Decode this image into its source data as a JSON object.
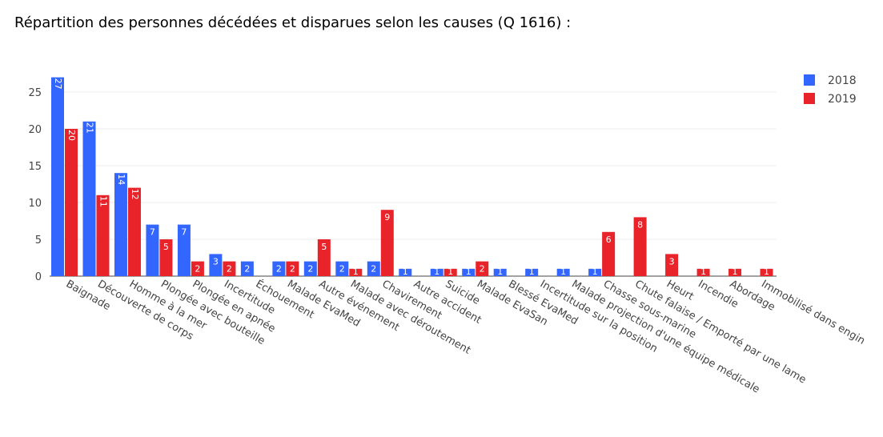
{
  "title": "Répartition des personnes décédées et disparues selon les causes (Q 1616) :",
  "chart_data": {
    "type": "bar",
    "categories": [
      "Baignade",
      "Découverte de corps",
      "Homme à la mer",
      "Plongée avec bouteille",
      "Plongée en apnée",
      "Incertitude",
      "Échouement",
      "Malade EvaMed",
      "Autre événement",
      "Malade avec déroutement",
      "Chavirement",
      "Autre accident",
      "Suicide",
      "Malade EvaSan",
      "Blessé EvaMed",
      "Incertitude sur la position",
      "Malade projection d'une équipe médicale",
      "Chasse sous-marine",
      "Chute falaise / Emporté par une lame",
      "Heurt",
      "Incendie",
      "Abordage",
      "Immobilisé dans engin"
    ],
    "series": [
      {
        "name": "2018",
        "color": "#3366ff",
        "values": [
          27,
          21,
          14,
          7,
          7,
          3,
          2,
          2,
          2,
          2,
          2,
          1,
          1,
          1,
          1,
          1,
          1,
          1,
          0,
          0,
          0,
          0,
          0
        ]
      },
      {
        "name": "2019",
        "color": "#e8242a",
        "values": [
          20,
          11,
          12,
          5,
          2,
          2,
          0,
          2,
          5,
          1,
          9,
          0,
          1,
          2,
          0,
          0,
          0,
          6,
          8,
          3,
          1,
          1,
          1
        ]
      }
    ],
    "ylim": [
      0,
      27
    ],
    "yticks": [
      0,
      5,
      10,
      15,
      20,
      25
    ],
    "grid": true,
    "legend": "top-right"
  }
}
